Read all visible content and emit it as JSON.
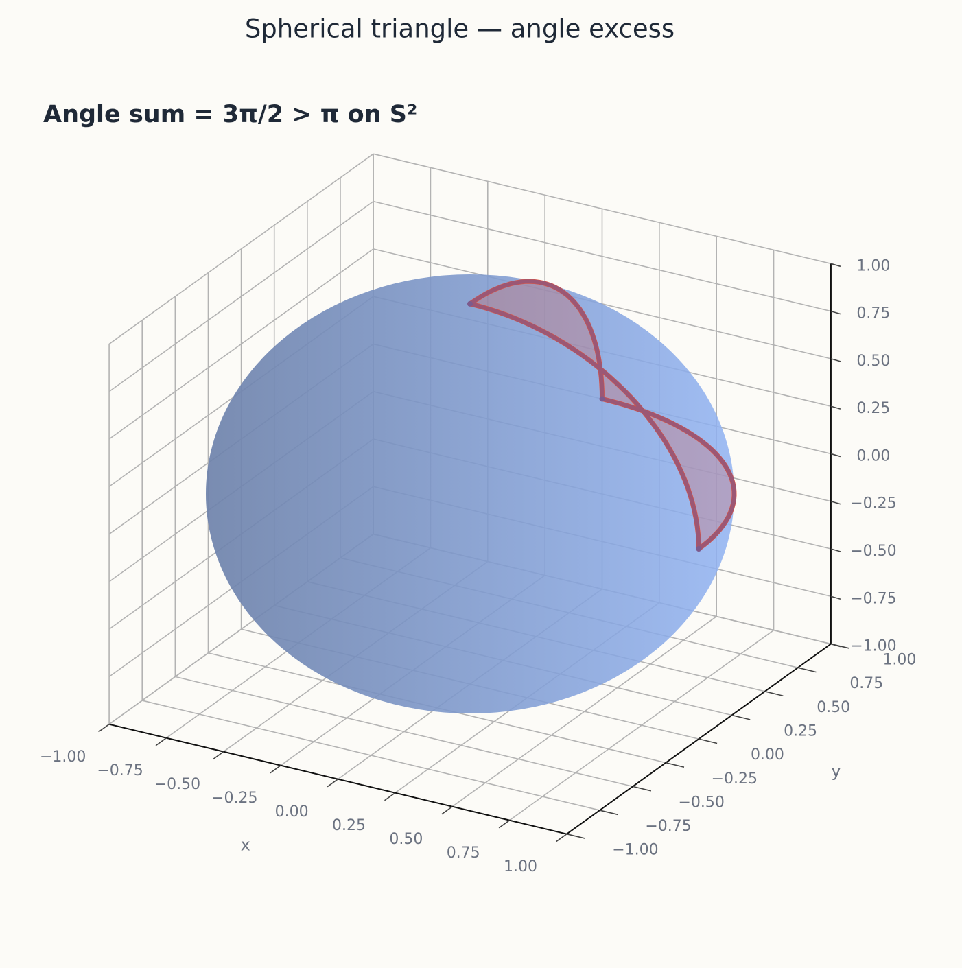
{
  "chart_data": {
    "type": "sphere3d",
    "title": "Spherical triangle — angle excess",
    "annotation": "Angle sum = 3π/2 > π  on S²",
    "xlabel": "x",
    "ylabel": "y",
    "xlim": [
      -1,
      1
    ],
    "ylim": [
      -1,
      1
    ],
    "zlim": [
      -1,
      1
    ],
    "xticks": [
      {
        "value": -1,
        "label": "−1.00"
      },
      {
        "value": -0.75,
        "label": "−0.75"
      },
      {
        "value": -0.5,
        "label": "−0.50"
      },
      {
        "value": -0.25,
        "label": "−0.25"
      },
      {
        "value": 0,
        "label": "0.00"
      },
      {
        "value": 0.25,
        "label": "0.25"
      },
      {
        "value": 0.5,
        "label": "0.50"
      },
      {
        "value": 0.75,
        "label": "0.75"
      },
      {
        "value": 1,
        "label": "1.00"
      }
    ],
    "yticks": [
      {
        "value": -1,
        "label": "−1.00"
      },
      {
        "value": -0.75,
        "label": "−0.75"
      },
      {
        "value": -0.5,
        "label": "−0.50"
      },
      {
        "value": -0.25,
        "label": "−0.25"
      },
      {
        "value": 0,
        "label": "0.00"
      },
      {
        "value": 0.25,
        "label": "0.25"
      },
      {
        "value": 0.5,
        "label": "0.50"
      },
      {
        "value": 0.75,
        "label": "0.75"
      },
      {
        "value": 1,
        "label": "1.00"
      }
    ],
    "zticks": [
      {
        "value": -1,
        "label": "−1.00"
      },
      {
        "value": -0.75,
        "label": "−0.75"
      },
      {
        "value": -0.5,
        "label": "−0.50"
      },
      {
        "value": -0.25,
        "label": "−0.25"
      },
      {
        "value": 0,
        "label": "0.00"
      },
      {
        "value": 0.25,
        "label": "0.25"
      },
      {
        "value": 0.5,
        "label": "0.50"
      },
      {
        "value": 0.75,
        "label": "0.75"
      },
      {
        "value": 1,
        "label": "1.00"
      }
    ],
    "grid": true,
    "sphere": {
      "radius": 1,
      "color": "#8fb2f2"
    },
    "triangle": {
      "vertices": [
        [
          0,
          0,
          1
        ],
        [
          1,
          0,
          0
        ],
        [
          0,
          1,
          0
        ]
      ],
      "color": "#e5533d"
    }
  }
}
